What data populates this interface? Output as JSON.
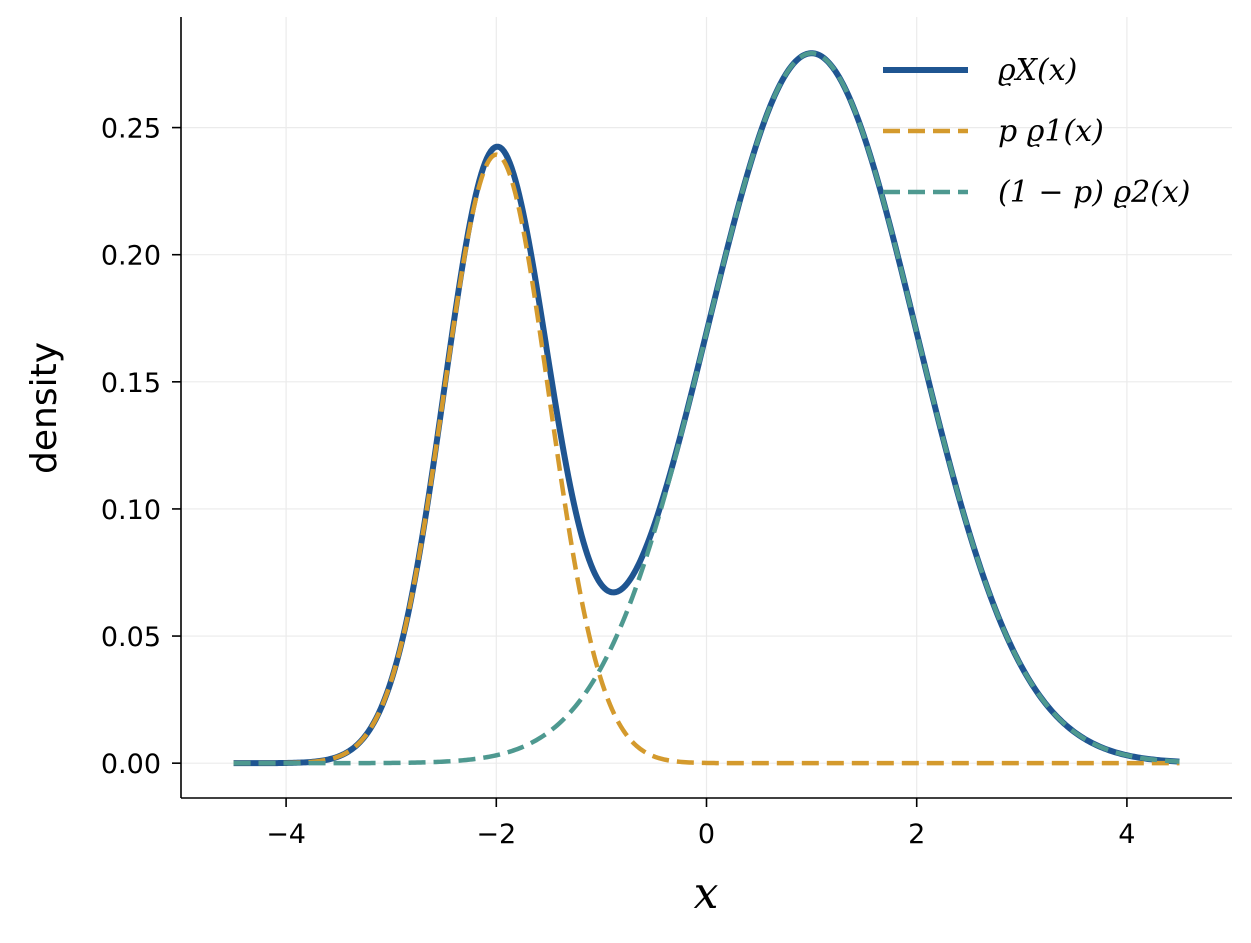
{
  "chart_data": {
    "type": "line",
    "xlabel": "x",
    "ylabel": "density",
    "xlim": [
      -5,
      5
    ],
    "ylim": [
      -0.0137,
      0.2935
    ],
    "xticks": [
      -4,
      -2,
      0,
      2,
      4
    ],
    "xtick_labels": [
      "−4",
      "−2",
      "0",
      "2",
      "4"
    ],
    "yticks": [
      0.0,
      0.05,
      0.1,
      0.15,
      0.2,
      0.25
    ],
    "ytick_labels": [
      "0.00",
      "0.05",
      "0.10",
      "0.15",
      "0.20",
      "0.25"
    ],
    "grid": true,
    "legend_position": "top-right",
    "domain": [
      -4.5,
      4.5
    ],
    "mixture": {
      "p": 0.3,
      "component1": {
        "mean": -2.0,
        "sd": 0.5
      },
      "component2": {
        "mean": 1.0,
        "sd": 1.0
      }
    },
    "series": [
      {
        "name": "ϱX(x)",
        "color": "#1f5591",
        "style": "solid"
      },
      {
        "name": "p ϱ1(x)",
        "color": "#d49a2d",
        "style": "dashed"
      },
      {
        "name": "(1 − p) ϱ2(x)",
        "color": "#4e9990",
        "style": "dashed"
      }
    ]
  }
}
